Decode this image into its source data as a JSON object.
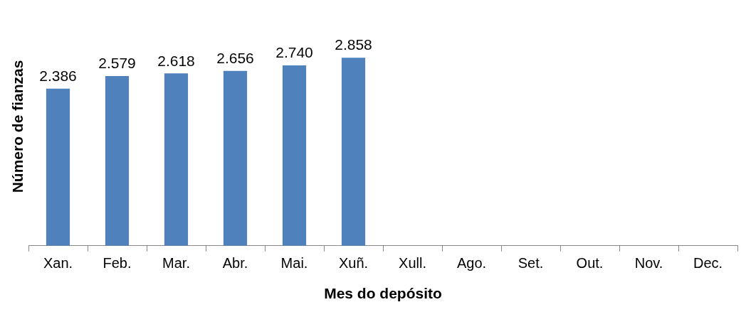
{
  "chart_data": {
    "type": "bar",
    "xlabel": "Mes do depósito",
    "ylabel": "Número de fianzas",
    "categories": [
      "Xan.",
      "Feb.",
      "Mar.",
      "Abr.",
      "Mai.",
      "Xuñ.",
      "Xull.",
      "Ago.",
      "Set.",
      "Out.",
      "Nov.",
      "Dec."
    ],
    "values": [
      2386,
      2579,
      2618,
      2656,
      2740,
      2858,
      null,
      null,
      null,
      null,
      null,
      null
    ],
    "value_labels": [
      "2.386",
      "2.579",
      "2.618",
      "2.656",
      "2.740",
      "2.858",
      null,
      null,
      null,
      null,
      null,
      null
    ],
    "color": "#4f81bd",
    "tick_labels": "x",
    "grid": false,
    "legend": false
  }
}
